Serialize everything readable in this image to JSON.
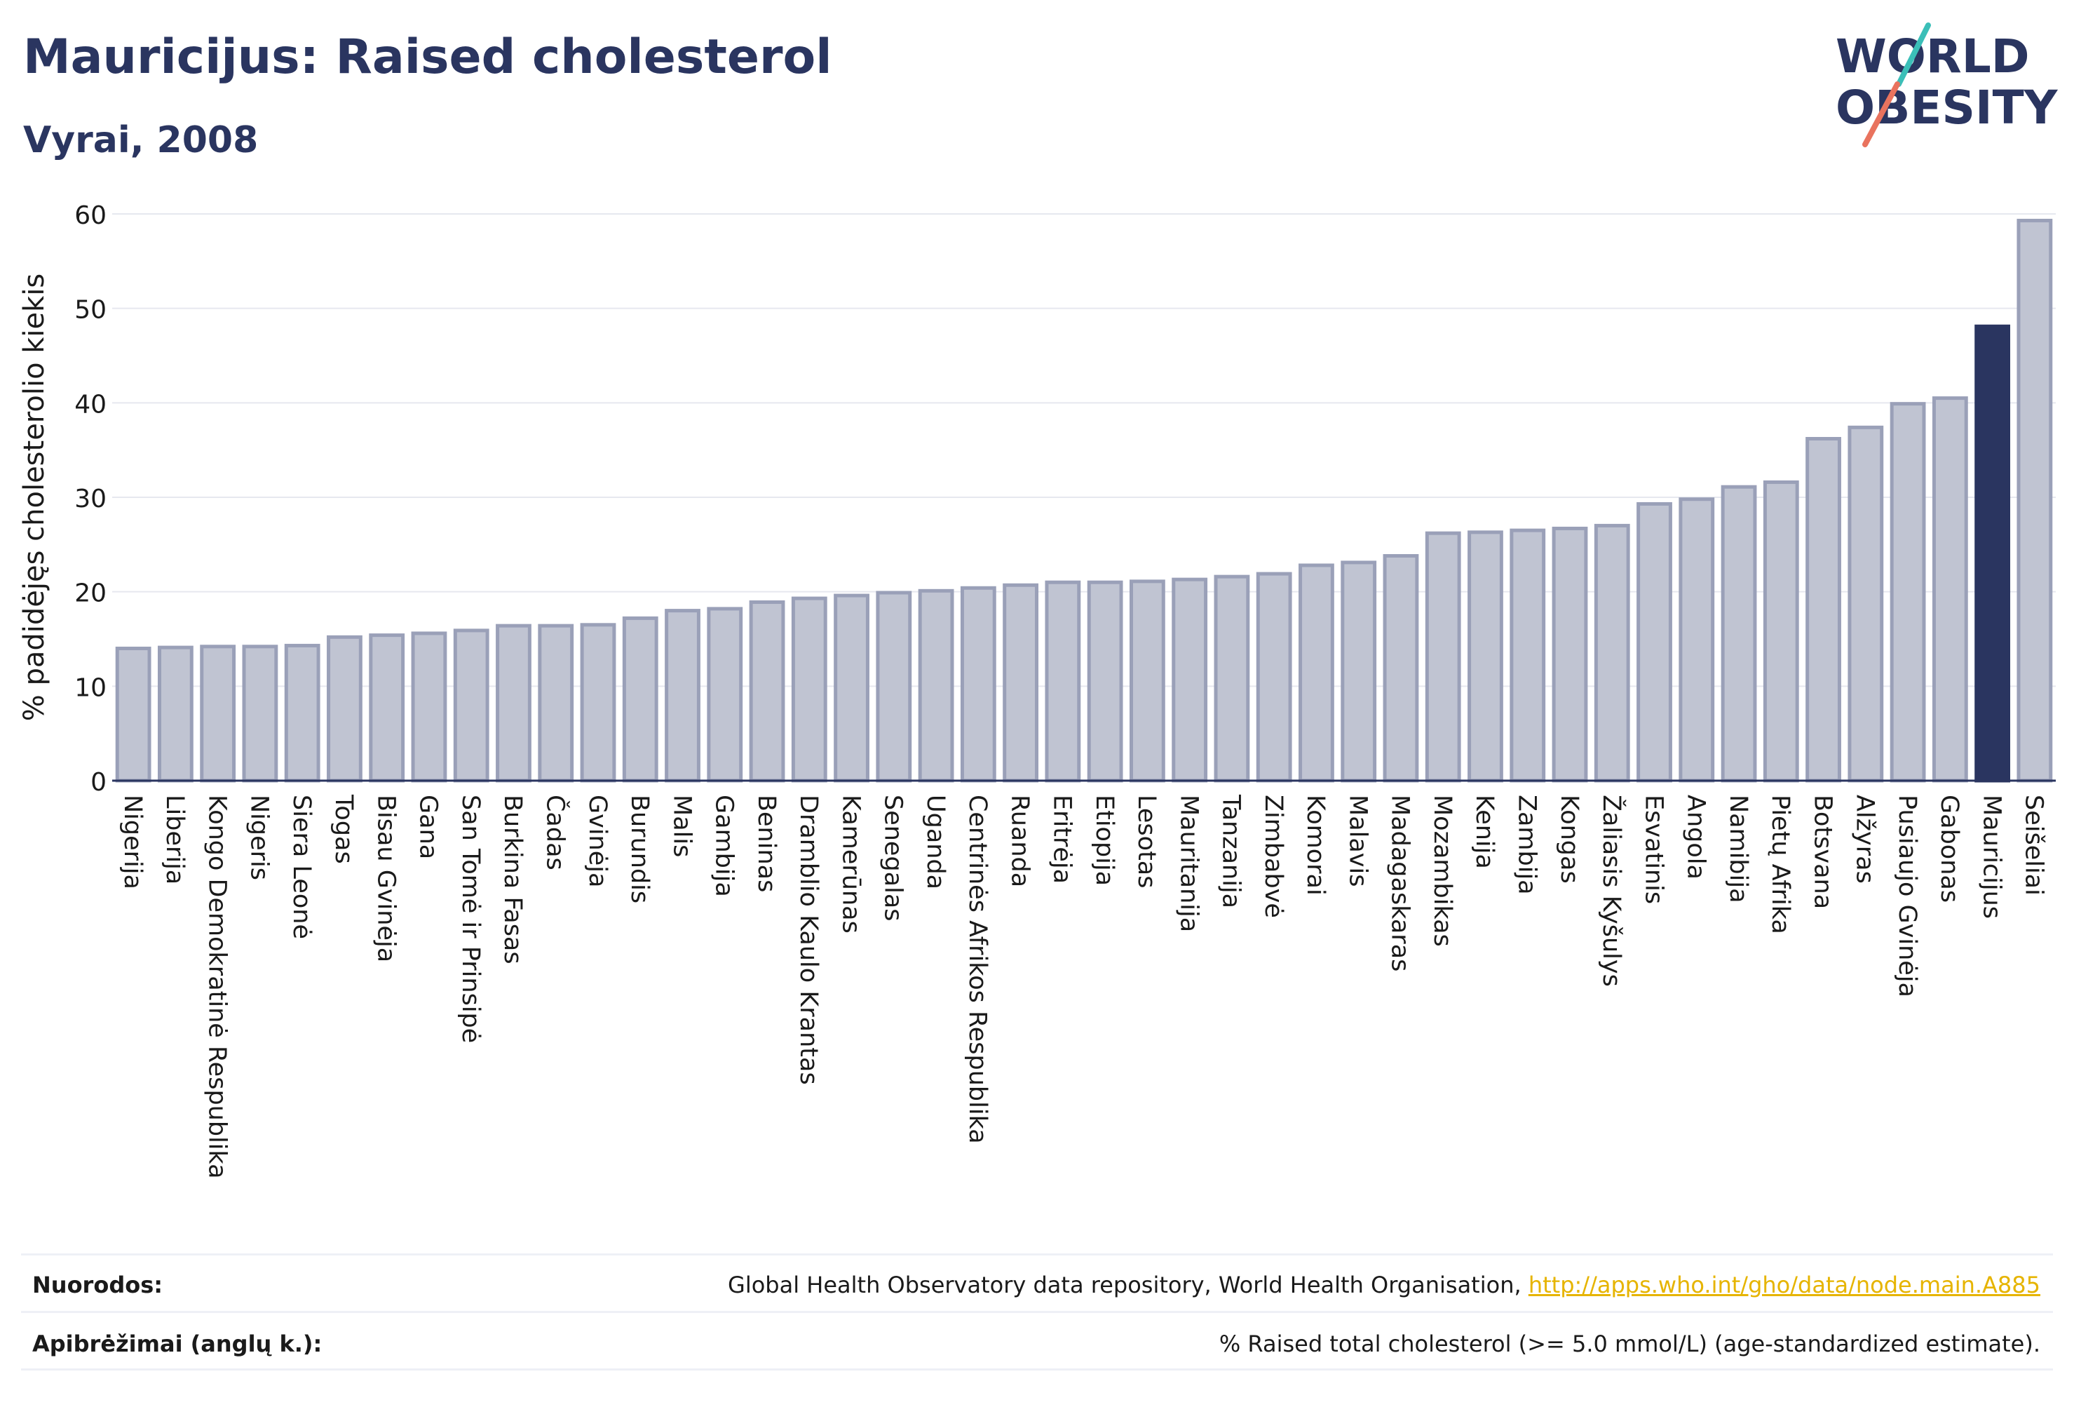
{
  "title": "Mauricijus: Raised cholesterol",
  "subtitle": "Vyrai, 2008",
  "logo": {
    "line1": "WORLD",
    "line2": "OBESITY"
  },
  "colors": {
    "bar_fill": "#c0c4d2",
    "bar_stroke": "#9aa0b8",
    "highlight": "#2a3560",
    "grid": "#e6e8ef",
    "text": "#1a1a1a",
    "title": "#2a3560",
    "link": "#e6b400",
    "logo_teal": "#3bbfb8",
    "logo_coral": "#e9735e"
  },
  "footer": {
    "sources_label": "Nuorodos:",
    "sources_text": "Global Health Observatory data repository, World Health Organisation,",
    "sources_link": "http://apps.who.int/gho/data/node.main.A885",
    "definition_label": "Apibrėžimai (anglų k.):",
    "definition_text": "% Raised total cholesterol (>= 5.0 mmol/L) (age-standardized estimate)."
  },
  "chart_data": {
    "type": "bar",
    "ylabel": "% padidėjęs cholesterolio kiekis",
    "xlabel": "",
    "ylim": [
      0,
      60
    ],
    "yticks": [
      0,
      10,
      20,
      30,
      40,
      50,
      60
    ],
    "grid": true,
    "highlight": "Mauricijus",
    "categories": [
      "Nigerija",
      "Liberija",
      "Kongo Demokratinė Respublika",
      "Nigeris",
      "Siera Leonė",
      "Togas",
      "Bisau Gvinėja",
      "Gana",
      "San Tomė ir Prinsipė",
      "Burkina Fasas",
      "Čadas",
      "Gvinėja",
      "Burundis",
      "Malis",
      "Gambija",
      "Beninas",
      "Dramblio Kaulo Krantas",
      "Kamerūnas",
      "Senegalas",
      "Uganda",
      "Centrinės Afrikos Respublika",
      "Ruanda",
      "Eritrėja",
      "Etiopija",
      "Lesotas",
      "Mauritanija",
      "Tanzanija",
      "Zimbabvė",
      "Komorai",
      "Malavis",
      "Madagaskaras",
      "Mozambikas",
      "Kenija",
      "Zambija",
      "Kongas",
      "Žaliasis Kyšulys",
      "Esvatinis",
      "Angola",
      "Namibija",
      "Pietų Afrika",
      "Botsvana",
      "Alžyras",
      "Pusiaujo Gvinėja",
      "Gabonas",
      "Mauricijus",
      "Seišeliai"
    ],
    "values": [
      14.0,
      14.1,
      14.2,
      14.2,
      14.3,
      15.2,
      15.4,
      15.6,
      15.9,
      16.4,
      16.4,
      16.5,
      17.2,
      18.0,
      18.2,
      18.9,
      19.3,
      19.6,
      19.9,
      20.1,
      20.4,
      20.7,
      21.0,
      21.0,
      21.1,
      21.3,
      21.6,
      21.9,
      22.8,
      23.1,
      23.8,
      26.2,
      26.3,
      26.5,
      26.7,
      27.0,
      29.3,
      29.8,
      31.1,
      31.6,
      36.2,
      37.4,
      39.9,
      40.5,
      48.1,
      59.3
    ]
  }
}
